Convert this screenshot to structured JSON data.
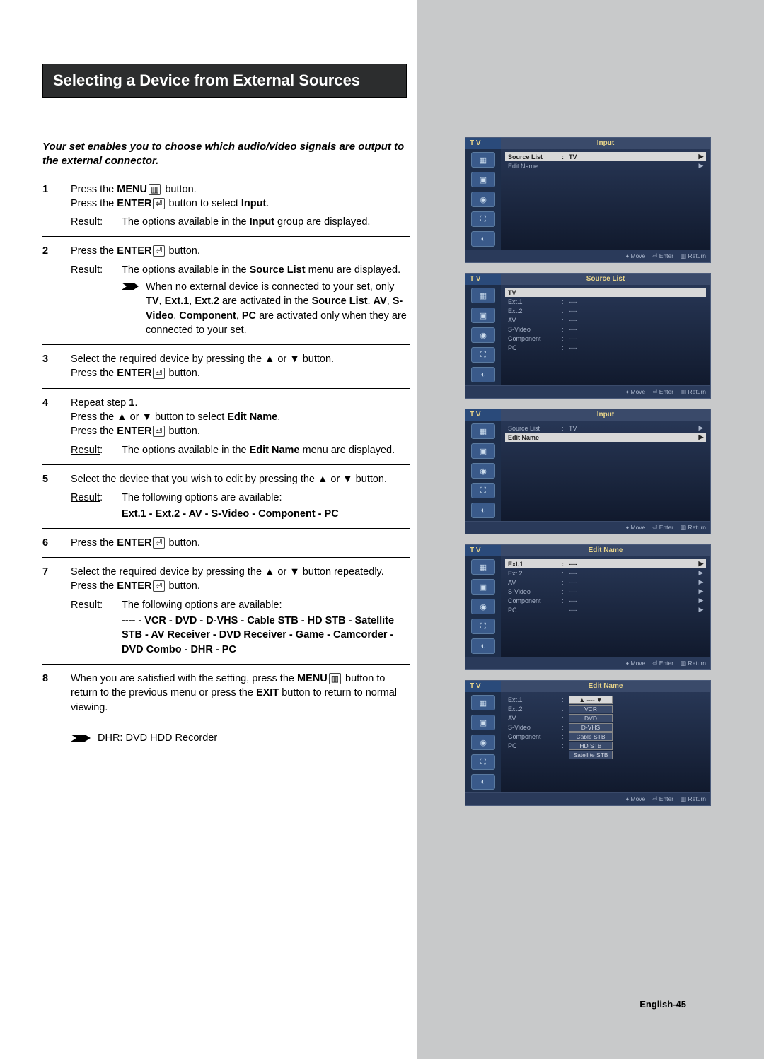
{
  "page": {
    "title": "Selecting a Device from External Sources",
    "intro": "Your set enables you to choose which audio/video signals are output to the external connector.",
    "footer": "English-45",
    "footnote_label": "DHR: DVD HDD Recorder"
  },
  "labels": {
    "result": "Result:",
    "menu": "MENU",
    "enter": "ENTER",
    "input": "Input",
    "source_list": "Source List",
    "edit_name": "Edit Name"
  },
  "steps": [
    {
      "num": "1",
      "lines": [
        {
          "pre": "Press the ",
          "b": "MENU",
          "icon": "menu",
          "post": " button."
        },
        {
          "pre": "Press the ",
          "b": "ENTER",
          "icon": "enter",
          "post": " button to select ",
          "b2": "Input",
          "post2": "."
        }
      ],
      "result": {
        "pre": "The options available in the ",
        "b": "Input",
        "post": " group are displayed."
      }
    },
    {
      "num": "2",
      "lines": [
        {
          "pre": "Press the ",
          "b": "ENTER",
          "icon": "enter",
          "post": " button."
        }
      ],
      "result": {
        "pre": "The options available in the ",
        "b": "Source List",
        "post": " menu are displayed.",
        "note_pre": "When no external device is connected to your set, only ",
        "note_b": "TV",
        "note_mid": ", ",
        "note_b2": "Ext.1",
        "note_mid2": ", ",
        "note_b3": "Ext.2",
        "note_post": " are activated in the ",
        "note_b4": "Source List",
        "note_post2": ". ",
        "note_b5": "AV",
        "note_mid3": ", ",
        "note_b6": "S-Video",
        "note_mid4": ", ",
        "note_b7": "Component",
        "note_mid5": ", ",
        "note_b8": "PC",
        "note_post3": " are activated only when they are connected to your set."
      }
    },
    {
      "num": "3",
      "lines": [
        {
          "pre": "Select the required device by pressing the ▲ or ▼ button."
        },
        {
          "pre": "Press the ",
          "b": "ENTER",
          "icon": "enter",
          "post": " button."
        }
      ]
    },
    {
      "num": "4",
      "lines": [
        {
          "pre": "Repeat step ",
          "b": "1",
          "post": "."
        },
        {
          "pre": "Press the ▲ or ▼ button to select ",
          "b": "Edit Name",
          "post": "."
        },
        {
          "pre": "Press the ",
          "b": "ENTER",
          "icon": "enter",
          "post": " button."
        }
      ],
      "result": {
        "pre": "The options available in the ",
        "b": "Edit Name",
        "post": " menu are displayed."
      }
    },
    {
      "num": "5",
      "lines": [
        {
          "pre": "Select the device that you wish to edit by pressing the ▲ or ▼ button."
        }
      ],
      "result": {
        "pre": "The following options are available:",
        "opts": "Ext.1 - Ext.2 - AV - S-Video - Component - PC"
      }
    },
    {
      "num": "6",
      "lines": [
        {
          "pre": "Press the ",
          "b": "ENTER",
          "icon": "enter",
          "post": " button."
        }
      ]
    },
    {
      "num": "7",
      "lines": [
        {
          "pre": "Select the required device by pressing the ▲ or ▼ button repeatedly."
        },
        {
          "pre": "Press the ",
          "b": "ENTER",
          "icon": "enter",
          "post": " button."
        }
      ],
      "result": {
        "pre": "The following options are available:",
        "opts": "---- - VCR - DVD - D-VHS - Cable STB - HD STB - Satellite STB - AV Receiver - DVD Receiver - Game - Camcorder - DVD Combo - DHR - PC"
      }
    },
    {
      "num": "8",
      "lines": [
        {
          "pre": "When you are satisfied with the setting, press the ",
          "b": "MENU",
          "icon": "menu",
          "post": " button to return to the previous menu or press the ",
          "b2": "EXIT",
          "post2": " button to return to normal viewing."
        }
      ]
    }
  ],
  "osd": {
    "tab": "T V",
    "foot_move": "Move",
    "foot_enter": "Enter",
    "foot_return": "Return",
    "screens": [
      {
        "title": "Input",
        "rows": [
          {
            "c1": "Source List",
            "c2": ":",
            "c3": "TV",
            "arrow": true,
            "sel": true
          },
          {
            "c1": "Edit Name",
            "c2": "",
            "c3": "",
            "arrow": true
          }
        ]
      },
      {
        "title": "Source List",
        "rows": [
          {
            "c1": "TV",
            "c2": "",
            "c3": "",
            "sel": true
          },
          {
            "c1": "Ext.1",
            "c2": ":",
            "c3": "----"
          },
          {
            "c1": "Ext.2",
            "c2": ":",
            "c3": "----"
          },
          {
            "c1": "AV",
            "c2": ":",
            "c3": "----"
          },
          {
            "c1": "S-Video",
            "c2": ":",
            "c3": "----"
          },
          {
            "c1": "Component",
            "c2": ":",
            "c3": "----"
          },
          {
            "c1": "PC",
            "c2": ":",
            "c3": "----"
          }
        ]
      },
      {
        "title": "Input",
        "rows": [
          {
            "c1": "Source List",
            "c2": ":",
            "c3": "TV",
            "arrow": true
          },
          {
            "c1": "Edit Name",
            "c2": "",
            "c3": "",
            "arrow": true,
            "sel": true
          }
        ]
      },
      {
        "title": "Edit Name",
        "rows": [
          {
            "c1": "Ext.1",
            "c2": ":",
            "c3": "----",
            "arrow": true,
            "sel": true
          },
          {
            "c1": "Ext.2",
            "c2": ":",
            "c3": "----",
            "arrow": true
          },
          {
            "c1": "AV",
            "c2": ":",
            "c3": "----",
            "arrow": true
          },
          {
            "c1": "S-Video",
            "c2": ":",
            "c3": "----",
            "arrow": true
          },
          {
            "c1": "Component",
            "c2": ":",
            "c3": "----",
            "arrow": true
          },
          {
            "c1": "PC",
            "c2": ":",
            "c3": "----",
            "arrow": true
          }
        ]
      },
      {
        "title": "Edit Name",
        "valbox": true,
        "rows": [
          {
            "c1": "Ext.1",
            "c2": ":",
            "val": "----",
            "sel": true
          },
          {
            "c1": "Ext.2",
            "c2": ":",
            "val": "VCR"
          },
          {
            "c1": "AV",
            "c2": ":",
            "val": "DVD"
          },
          {
            "c1": "S-Video",
            "c2": ":",
            "val": "D-VHS"
          },
          {
            "c1": "Component",
            "c2": ":",
            "val": "Cable STB"
          },
          {
            "c1": "PC",
            "c2": ":",
            "val": "HD STB"
          },
          {
            "c1": "",
            "c2": "",
            "val": "Satellite STB"
          }
        ]
      }
    ]
  },
  "colors": {
    "sidebar": "#c8c9ca",
    "title_bg": "#2c2d2e",
    "osd_grad_top": "#2a3a5a",
    "osd_grad_bot": "#0e1628",
    "osd_accent": "#e8d48a"
  },
  "icons": {
    "menu_glyph": "▥",
    "enter_glyph": "⏎",
    "up": "▲",
    "down": "▼",
    "right": "▶",
    "updown": "♦"
  }
}
